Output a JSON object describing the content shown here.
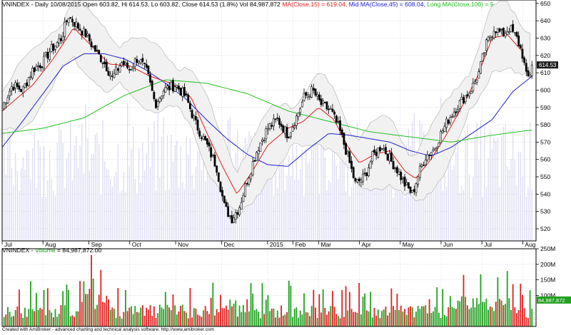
{
  "header": {
    "symbol": "VNINDEX",
    "info": " - Daily 10/08/2015 Open 603.82, Hi 614.53, Lo 603.82, Close 614.53 (1.8%) Vol 84,987,872",
    "ma15": "MA(Close,15) = 619.04,",
    "ma45": "Mid MA(Close,45) = 608.04,",
    "ma100": "Long MA(Close,100) = 5",
    "colors": {
      "ma15": "#e02020",
      "ma45": "#2020d0",
      "ma100": "#20c020",
      "text": "#000000"
    }
  },
  "volume_header": {
    "symbol": "VNINDEX",
    "label": "Volume",
    "value": "= 84,987,872.00",
    "color": "#20a020"
  },
  "footer": {
    "text": "Created with AmiBroker - advanced charting and technical analysis software. http://www.amibroker.com"
  },
  "chart_data": [
    {
      "type": "candlestick",
      "title": "",
      "y_ticks": [
        520,
        530,
        540,
        550,
        560,
        570,
        580,
        590,
        600,
        610,
        620,
        630,
        640,
        650
      ],
      "ylim": [
        513,
        652
      ],
      "last_price_label": "614.53",
      "x_labels": [
        "Jul",
        "Aug",
        "Sep",
        "Oct",
        "Nov",
        "Dec",
        "2015",
        "Feb",
        "Mar",
        "Apr",
        "May",
        "Jun",
        "Jul",
        "Aug"
      ],
      "x_label_positions": [
        0,
        4,
        8.5,
        12.5,
        17,
        21.5,
        26,
        28.5,
        31,
        35,
        39,
        43,
        47,
        51
      ],
      "anchors": [
        [
          0,
          590
        ],
        [
          1,
          603
        ],
        [
          2,
          600
        ],
        [
          3,
          612
        ],
        [
          4,
          616
        ],
        [
          4.6,
          622
        ],
        [
          5.8,
          630
        ],
        [
          6.5,
          643
        ],
        [
          7.2,
          638
        ],
        [
          8.2,
          632
        ],
        [
          9.2,
          622
        ],
        [
          10,
          616
        ],
        [
          10.8,
          607
        ],
        [
          11.7,
          616
        ],
        [
          12.5,
          612
        ],
        [
          13.3,
          619
        ],
        [
          14.2,
          610
        ],
        [
          15,
          592
        ],
        [
          15.8,
          600
        ],
        [
          17,
          603
        ],
        [
          18,
          596
        ],
        [
          19,
          580
        ],
        [
          20,
          569
        ],
        [
          21,
          556
        ],
        [
          21.8,
          532
        ],
        [
          22.5,
          526
        ],
        [
          23.2,
          532
        ],
        [
          24,
          548
        ],
        [
          25,
          566
        ],
        [
          26,
          578
        ],
        [
          27,
          583
        ],
        [
          28,
          574
        ],
        [
          28.8,
          584
        ],
        [
          29.6,
          596
        ],
        [
          30.4,
          600
        ],
        [
          31.2,
          592
        ],
        [
          32.2,
          588
        ],
        [
          33,
          578
        ],
        [
          33.8,
          563
        ],
        [
          34.6,
          546
        ],
        [
          35.5,
          550
        ],
        [
          36.3,
          562
        ],
        [
          37.2,
          568
        ],
        [
          38,
          560
        ],
        [
          38.7,
          554
        ],
        [
          39.4,
          546
        ],
        [
          40.2,
          540
        ],
        [
          40.8,
          552
        ],
        [
          41.5,
          562
        ],
        [
          42.3,
          566
        ],
        [
          43,
          575
        ],
        [
          43.8,
          584
        ],
        [
          44.5,
          590
        ],
        [
          45.3,
          596
        ],
        [
          46,
          601
        ],
        [
          46.7,
          610
        ],
        [
          47.4,
          626
        ],
        [
          48.2,
          636
        ],
        [
          49,
          632
        ],
        [
          49.7,
          636
        ],
        [
          50.4,
          630
        ],
        [
          51,
          620
        ],
        [
          51.4,
          606
        ],
        [
          51.9,
          612
        ]
      ],
      "series": [
        {
          "name": "MA(Close,15)",
          "color": "#e02020",
          "values": [
            [
              0,
              588
            ],
            [
              3,
              603
            ],
            [
              5,
              618
            ],
            [
              7,
              636
            ],
            [
              8.5,
              627
            ],
            [
              10.5,
              615
            ],
            [
              12.5,
              614
            ],
            [
              14.5,
              608
            ],
            [
              16.5,
              604
            ],
            [
              18.5,
              596
            ],
            [
              20,
              576
            ],
            [
              21.5,
              557
            ],
            [
              23,
              540
            ],
            [
              24.5,
              553
            ],
            [
              26,
              568
            ],
            [
              28,
              578
            ],
            [
              29.5,
              582
            ],
            [
              31,
              590
            ],
            [
              32.5,
              583
            ],
            [
              34,
              566
            ],
            [
              35,
              558
            ],
            [
              36.5,
              563
            ],
            [
              38,
              565
            ],
            [
              39.5,
              553
            ],
            [
              40.5,
              549
            ],
            [
              42,
              560
            ],
            [
              43.5,
              574
            ],
            [
              45,
              590
            ],
            [
              46.5,
              607
            ],
            [
              48,
              630
            ],
            [
              49.5,
              632
            ],
            [
              51,
              622
            ]
          ]
        },
        {
          "name": "Mid MA(Close,45)",
          "color": "#2020d0",
          "values": [
            [
              0,
              567
            ],
            [
              2,
              582
            ],
            [
              4,
              598
            ],
            [
              6,
              614
            ],
            [
              8,
              621
            ],
            [
              10,
              621
            ],
            [
              12,
              618
            ],
            [
              14,
              612
            ],
            [
              16,
              604
            ],
            [
              18,
              595
            ],
            [
              20,
              583
            ],
            [
              22,
              572
            ],
            [
              24,
              563
            ],
            [
              26,
              557
            ],
            [
              28,
              556
            ],
            [
              30,
              566
            ],
            [
              32,
              575
            ],
            [
              34,
              574
            ],
            [
              36,
              572
            ],
            [
              38,
              570
            ],
            [
              40,
              565
            ],
            [
              42,
              562
            ],
            [
              44,
              567
            ],
            [
              46,
              575
            ],
            [
              48,
              583
            ],
            [
              50,
              599
            ],
            [
              51.9,
              608
            ]
          ]
        },
        {
          "name": "Long MA(Close,100)",
          "color": "#20c020",
          "values": [
            [
              0,
              575
            ],
            [
              4,
              578
            ],
            [
              8,
              584
            ],
            [
              12,
              597
            ],
            [
              16,
              606
            ],
            [
              20,
              604
            ],
            [
              24,
              598
            ],
            [
              28,
              588
            ],
            [
              32,
              582
            ],
            [
              36,
              576
            ],
            [
              40,
              573
            ],
            [
              44,
              570
            ],
            [
              48,
              574
            ],
            [
              51.9,
              577
            ]
          ]
        }
      ]
    },
    {
      "type": "bar",
      "title": "Volume",
      "y_ticks": [
        "100M",
        "150M",
        "200M",
        "250M"
      ],
      "y_values": [
        100,
        150,
        200,
        250
      ],
      "ylim": [
        0,
        250
      ],
      "last_value_label": "84,987,872",
      "colors": {
        "up": "#20a020",
        "down": "#e02020"
      }
    }
  ]
}
